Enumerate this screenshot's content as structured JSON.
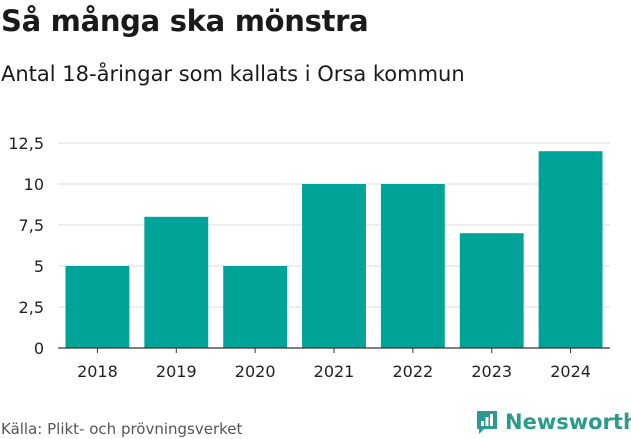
{
  "title": "Så många ska mönstra",
  "subtitle": "Antal 18-åringar som kallats i Orsa kommun",
  "source": "Källa: Plikt- och prövningsverket",
  "brand": {
    "name": "Newsworthy",
    "icon": "newsworthy-logo-icon"
  },
  "colors": {
    "bar": "#00a398",
    "grid": "#dddddd",
    "axis": "#333333",
    "brand": "#2c9a8e"
  },
  "chart_data": {
    "type": "bar",
    "categories": [
      "2018",
      "2019",
      "2020",
      "2021",
      "2022",
      "2023",
      "2024"
    ],
    "values": [
      5,
      8,
      5,
      10,
      10,
      7,
      12
    ],
    "title": "Så många ska mönstra",
    "subtitle": "Antal 18-åringar som kallats i Orsa kommun",
    "xlabel": "",
    "ylabel": "",
    "ylim": [
      0,
      12.5
    ],
    "yticks": [
      0,
      2.5,
      5,
      7.5,
      10,
      12.5
    ],
    "ytick_labels": [
      "0",
      "2,5",
      "5",
      "7,5",
      "10",
      "12,5"
    ],
    "grid": true,
    "legend": "none"
  }
}
